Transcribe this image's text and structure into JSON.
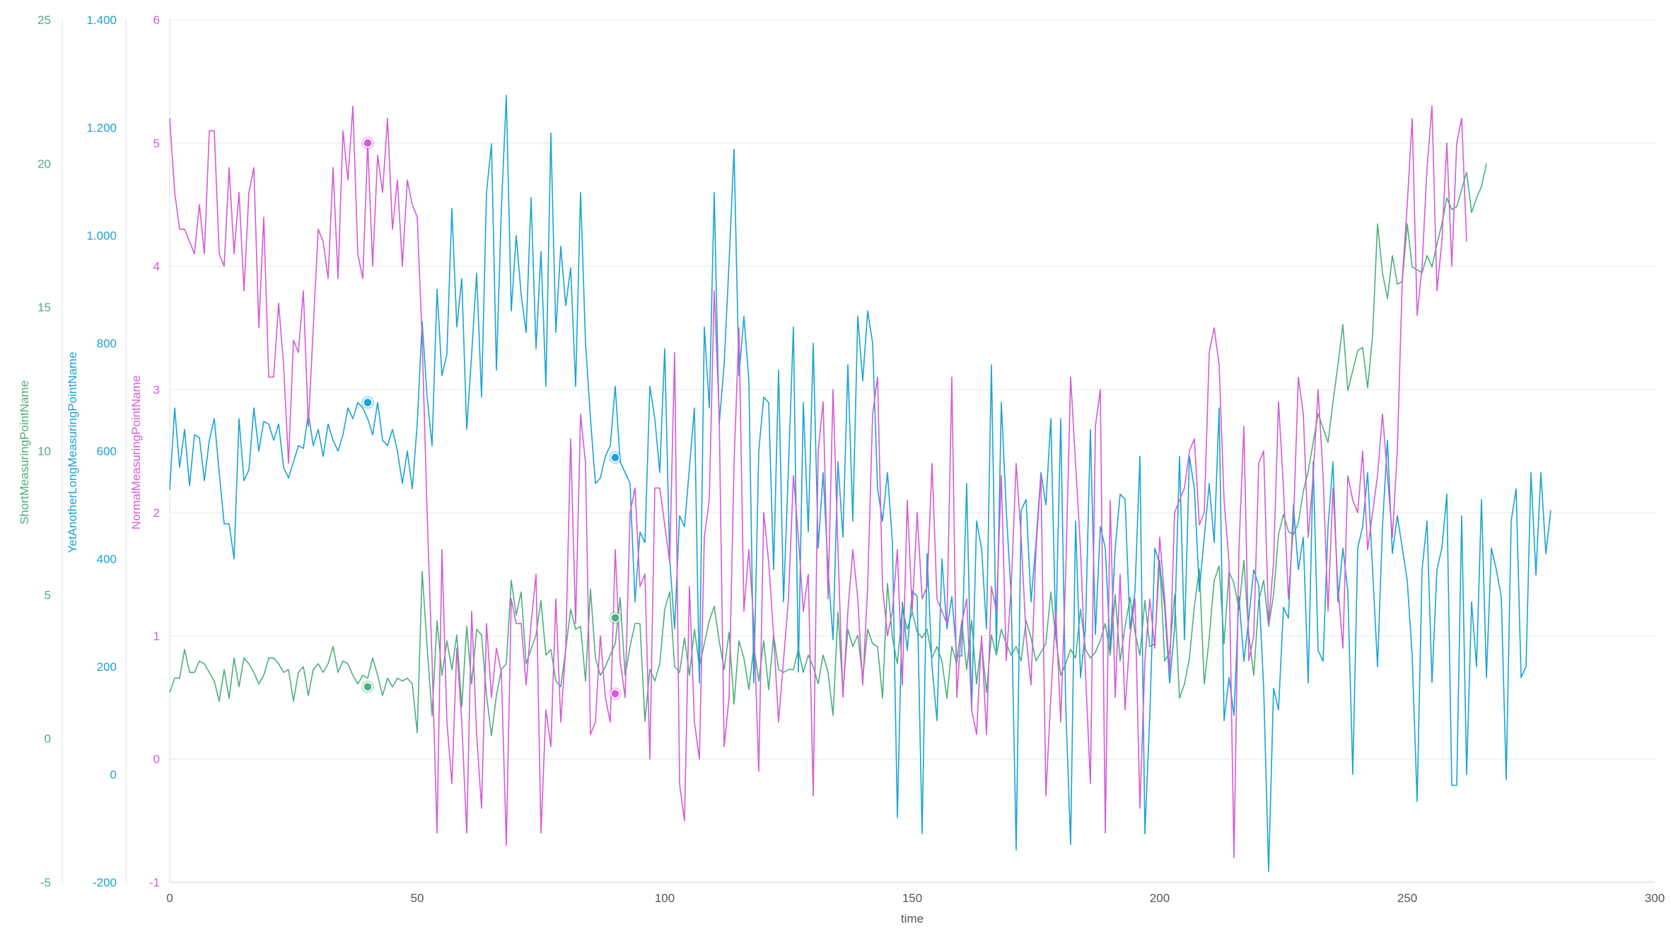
{
  "chart_data": {
    "type": "line",
    "x_axis": {
      "label": "time",
      "min": 0,
      "max": 300,
      "ticks": [
        "0",
        "50",
        "100",
        "150",
        "200",
        "250",
        "300"
      ]
    },
    "y_axes": [
      {
        "id": "green",
        "label": "ShortMeasuringPointName",
        "color": "#4caf7d",
        "min": -5,
        "max": 25,
        "ticks": [
          "-5",
          "0",
          "5",
          "10",
          "15",
          "20",
          "25"
        ]
      },
      {
        "id": "blue",
        "label": "YetAnotherLongMeasuringPointName",
        "color": "#1aa3d4",
        "min": -200,
        "max": 1400,
        "ticks": [
          "-200",
          "0",
          "200",
          "400",
          "600",
          "800",
          "1.000",
          "1.200",
          "1.400"
        ]
      },
      {
        "id": "magenta",
        "label": "NormalMeasuringPointName",
        "color": "#d45ad8",
        "min": -1,
        "max": 6,
        "ticks": [
          "-1",
          "0",
          "1",
          "2",
          "3",
          "4",
          "5",
          "6"
        ]
      }
    ],
    "grid": true,
    "series": [
      {
        "axis": "green",
        "color": "#4caf7d",
        "x_start": 0,
        "values": [
          1.6,
          2.1,
          2.1,
          3.1,
          2.3,
          2.3,
          2.7,
          2.6,
          2.3,
          2.0,
          1.3,
          2.4,
          1.4,
          2.8,
          1.8,
          2.8,
          2.6,
          2.3,
          1.9,
          2.2,
          2.8,
          2.8,
          2.6,
          2.3,
          2.4,
          1.3,
          2.3,
          2.5,
          1.5,
          2.4,
          2.6,
          2.3,
          2.6,
          3.2,
          2.3,
          2.7,
          2.6,
          2.2,
          1.9,
          2.2,
          2.1,
          2.8,
          2.2,
          1.5,
          2.1,
          1.8,
          2.1,
          2.0,
          2.1,
          1.9,
          0.2,
          5.8,
          3.2,
          0.8,
          4.1,
          2.2,
          3.4,
          2.4,
          3.6,
          1.1,
          3.9,
          1.9,
          3.8,
          3.6,
          1.5,
          0.1,
          1.5,
          2.4,
          2.6,
          5.5,
          4.3,
          5.1,
          2.6,
          3.1,
          3.6,
          4.8,
          2.9,
          3.1,
          2.0,
          1.8,
          3.1,
          4.5,
          3.8,
          3.9,
          2.0,
          5.2,
          2.8,
          2.2,
          2.5,
          2.9,
          3.3,
          4.9,
          2.2,
          3.2,
          4.0,
          4.0,
          0.6,
          2.4,
          2.0,
          2.6,
          4.5,
          5.1,
          2.5,
          2.3,
          3.5,
          2.2,
          3.8,
          2.5,
          3.3,
          4.1,
          4.6,
          3.4,
          2.4,
          3.7,
          1.2,
          3.4,
          2.8,
          1.7,
          3.2,
          2.0,
          3.4,
          1.7,
          3.6,
          2.4,
          2.3,
          2.4,
          2.4,
          3.1,
          2.3,
          2.9,
          2.5,
          1.9,
          2.9,
          2.3,
          0.8,
          4.4,
          1.6,
          3.8,
          3.2,
          3.6,
          2.1,
          3.8,
          3.3,
          3.2,
          1.4,
          5.4,
          3.5,
          2.6,
          4.5,
          3.8,
          4.4,
          3.7,
          3.5,
          3.8,
          2.8,
          3.2,
          2.7,
          1.4,
          3.2,
          2.6,
          4.1,
          2.4,
          4.1,
          1.9,
          3.4,
          1.6,
          3.6,
          2.9,
          3.8,
          3.3,
          2.9,
          3.2,
          2.7,
          4.1,
          3.5,
          2.7,
          3.0,
          3.3,
          5.1,
          3.5,
          2.2,
          2.6,
          3.1,
          2.8,
          4.5,
          3.1,
          2.8,
          3.0,
          3.4,
          4.0,
          2.9,
          5.0,
          2.7,
          3.9,
          4.9,
          3.7,
          2.9,
          4.8,
          3.2,
          3.3,
          6.2,
          2.7,
          3.0,
          5.0,
          1.4,
          1.9,
          2.8,
          4.6,
          5.9,
          1.9,
          3.5,
          5.5,
          6.0,
          3.3,
          5.8,
          5.4,
          4.5,
          6.2,
          3.6,
          2.2,
          4.8,
          5.5,
          3.9,
          5.0,
          7.1,
          7.8,
          7.2,
          7.1,
          7.5,
          8.6,
          9.3,
          10.3,
          11.3,
          10.8,
          10.3,
          11.7,
          13.0,
          14.4,
          12.1,
          12.8,
          13.5,
          13.6,
          12.2,
          14.0,
          17.9,
          16.2,
          15.3,
          16.8,
          15.8,
          15.9,
          17.9,
          16.4,
          16.3,
          16.2,
          16.8,
          16.4,
          17.2,
          17.9,
          18.8,
          18.4,
          18.5,
          19.1,
          19.7,
          18.3,
          18.8,
          19.2,
          20.0
        ]
      },
      {
        "axis": "blue",
        "color": "#1aa3d4",
        "x_start": 0,
        "values": [
          528,
          680,
          570,
          640,
          536,
          630,
          625,
          545,
          620,
          660,
          560,
          465,
          465,
          400,
          660,
          545,
          565,
          680,
          600,
          655,
          650,
          620,
          650,
          570,
          550,
          580,
          610,
          605,
          670,
          610,
          640,
          590,
          650,
          620,
          600,
          630,
          680,
          660,
          690,
          680,
          660,
          630,
          690,
          620,
          610,
          640,
          600,
          540,
          600,
          530,
          650,
          840,
          700,
          610,
          900,
          740,
          780,
          1050,
          830,
          920,
          640,
          780,
          930,
          700,
          1080,
          1170,
          750,
          1050,
          1260,
          860,
          1000,
          890,
          820,
          1070,
          790,
          970,
          720,
          1190,
          820,
          980,
          870,
          940,
          720,
          1080,
          800,
          660,
          540,
          550,
          590,
          610,
          720,
          580,
          560,
          540,
          320,
          450,
          430,
          720,
          660,
          560,
          790,
          400,
          270,
          480,
          460,
          570,
          680,
          170,
          830,
          680,
          1080,
          650,
          760,
          950,
          1160,
          740,
          850,
          730,
          170,
          600,
          700,
          690,
          380,
          750,
          320,
          570,
          830,
          190,
          690,
          450,
          800,
          420,
          560,
          380,
          250,
          580,
          440,
          760,
          470,
          850,
          730,
          860,
          800,
          530,
          470,
          560,
          430,
          -80,
          320,
          230,
          340,
          330,
          -110,
          410,
          200,
          100,
          400,
          270,
          330,
          220,
          220,
          540,
          120,
          470,
          420,
          270,
          760,
          230,
          690,
          490,
          330,
          -140,
          490,
          510,
          320,
          430,
          560,
          500,
          660,
          260,
          660,
          130,
          -130,
          470,
          180,
          270,
          640,
          260,
          460,
          420,
          230,
          420,
          520,
          510,
          270,
          340,
          590,
          -110,
          110,
          420,
          390,
          310,
          170,
          270,
          590,
          250,
          590,
          530,
          340,
          440,
          540,
          430,
          680,
          100,
          180,
          110,
          330,
          210,
          290,
          380,
          350,
          160,
          -180,
          160,
          120,
          310,
          290,
          500,
          380,
          440,
          170,
          580,
          230,
          210,
          460,
          580,
          320,
          420,
          340,
          0,
          420,
          460,
          560,
          380,
          200,
          460,
          620,
          410,
          480,
          420,
          360,
          220,
          -50,
          380,
          470,
          170,
          380,
          420,
          520,
          -20,
          -20,
          480,
          0,
          320,
          200,
          510,
          180,
          420,
          380,
          330,
          -10,
          470,
          530,
          180,
          200,
          560,
          370,
          560,
          410,
          490
        ]
      },
      {
        "axis": "magenta",
        "color": "#d45ad8",
        "x_start": 0,
        "values": [
          5.2,
          4.6,
          4.3,
          4.3,
          4.2,
          4.1,
          4.5,
          4.1,
          5.1,
          5.1,
          4.1,
          4.0,
          4.8,
          4.1,
          4.6,
          3.8,
          4.6,
          4.8,
          3.5,
          4.4,
          3.1,
          3.1,
          3.7,
          3.2,
          2.4,
          3.4,
          3.3,
          3.8,
          2.7,
          3.5,
          4.3,
          4.2,
          3.9,
          4.8,
          3.9,
          5.1,
          4.7,
          5.3,
          4.1,
          3.9,
          5.0,
          4.0,
          4.9,
          4.6,
          5.2,
          4.3,
          4.7,
          4.0,
          4.7,
          4.5,
          4.4,
          3.4,
          2.0,
          0.8,
          -0.6,
          1.7,
          0.3,
          -0.2,
          0.9,
          0.3,
          -0.6,
          1.2,
          0.2,
          -0.4,
          1.1,
          0.5,
          0.9,
          0.7,
          -0.7,
          1.3,
          1.1,
          1.1,
          0.6,
          1.1,
          1.5,
          -0.6,
          0.4,
          0.1,
          1.3,
          0.3,
          0.9,
          2.6,
          1.1,
          2.8,
          2.4,
          0.2,
          0.3,
          1.0,
          0.5,
          0.3,
          1.7,
          0.8,
          0.5,
          2.0,
          2.2,
          1.4,
          1.5,
          0.0,
          2.2,
          2.2,
          1.9,
          1.6,
          3.3,
          -0.2,
          -0.5,
          1.4,
          0.3,
          0.0,
          1.8,
          2.1,
          3.8,
          2.8,
          0.1,
          0.5,
          2.4,
          3.5,
          1.2,
          1.7,
          1.1,
          -0.1,
          2.0,
          1.6,
          1.0,
          0.3,
          0.8,
          1.3,
          2.3,
          1.8,
          1.2,
          1.5,
          -0.3,
          2.5,
          2.9,
          1.3,
          3.0,
          1.7,
          0.5,
          1.2,
          1.7,
          1.3,
          0.6,
          1.4,
          2.8,
          3.1,
          1.4,
          1.0,
          1.2,
          1.7,
          0.6,
          2.1,
          1.2,
          2.0,
          1.3,
          1.4,
          2.4,
          1.3,
          1.2,
          1.1,
          3.1,
          0.5,
          1.1,
          1.3,
          0.4,
          0.2,
          1.0,
          0.2,
          1.4,
          1.2,
          2.3,
          0.8,
          1.4,
          2.4,
          1.8,
          1.0,
          0.6,
          1.7,
          2.3,
          -0.3,
          0.5,
          1.2,
          0.3,
          1.5,
          3.1,
          2.4,
          1.7,
          0.7,
          -0.2,
          2.7,
          3.0,
          -0.6,
          2.1,
          0.5,
          1.5,
          0.4,
          1.0,
          1.3,
          -0.4,
          0.8,
          1.3,
          0.9,
          1.8,
          1.3,
          0.7,
          2.0,
          2.1,
          2.2,
          2.5,
          2.6,
          1.9,
          2.0,
          3.3,
          3.5,
          3.2,
          2.1,
          1.6,
          -0.8,
          1.7,
          2.7,
          0.8,
          1.0,
          2.4,
          2.5,
          1.1,
          1.6,
          2.9,
          2.2,
          1.3,
          1.9,
          3.1,
          2.8,
          1.8,
          2.3,
          3.0,
          2.3,
          1.2,
          2.2,
          1.4,
          0.9,
          2.3,
          2.1,
          2.0,
          2.5,
          1.7,
          2.0,
          2.3,
          2.8,
          2.3,
          1.8,
          2.5,
          3.9,
          4.5,
          5.2,
          3.6,
          4.0,
          4.8,
          5.3,
          3.8,
          4.2,
          5.0,
          4.0,
          5.0,
          5.2,
          4.2
        ]
      }
    ],
    "markers": [
      {
        "axis": "green",
        "x": 40,
        "y": 1.8
      },
      {
        "axis": "blue",
        "x": 40,
        "y": 690
      },
      {
        "axis": "magenta",
        "x": 40,
        "y": 5.0
      },
      {
        "axis": "green",
        "x": 90,
        "y": 4.2
      },
      {
        "axis": "blue",
        "x": 90,
        "y": 588
      },
      {
        "axis": "magenta",
        "x": 90,
        "y": 0.53
      }
    ]
  }
}
